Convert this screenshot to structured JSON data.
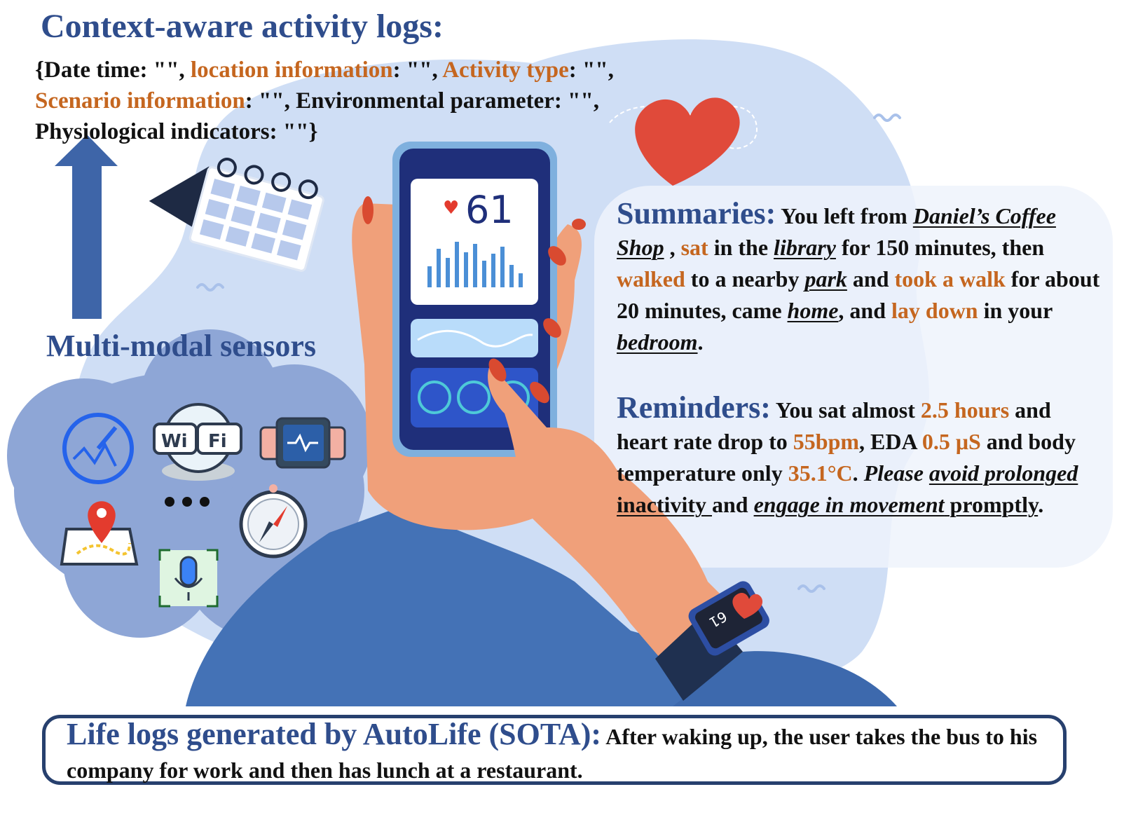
{
  "title": "Context-aware activity logs:",
  "schema": {
    "open": "{",
    "f1": "Date time",
    "v1": ": \"\", ",
    "f2": "location information",
    "v2": ": \"\", ",
    "f3": "Activity type",
    "v3": ": \"\",",
    "f4": "Scenario information",
    "v4": ": \"\", ",
    "f5": "Environmental parameter",
    "v5": ": \"\",",
    "f6": "Physiological indicators",
    "v6": ": \"\"}"
  },
  "sensors_label": "Multi-modal sensors",
  "sensor_icons": [
    "speedometer-icon",
    "wifi-icon",
    "smartwatch-icon",
    "map-pin-icon",
    "more-icon",
    "compass-icon",
    "microphone-icon",
    "calendar-icon",
    "heart-icon"
  ],
  "phone": {
    "heart_rate": "61"
  },
  "watch": {
    "value": "61"
  },
  "colors": {
    "accent_blue": "#2f4d8c",
    "accent_orange": "#c5661f",
    "arrow_blue": "#3e65a8"
  },
  "summaries": {
    "heading": "Summaries:",
    "t1": " You left from ",
    "p1": "Daniel’s Coffee Shop",
    "t2": " , ",
    "a1": "sat",
    "t3": " in the ",
    "p2": "library",
    "t4": " for 150 minutes, then ",
    "a2": "walked",
    "t5": " to a nearby ",
    "p3": "park",
    "t6": " and ",
    "a3": "took a walk",
    "t7": " for about 20 minutes, came ",
    "p4": "home",
    "t8": ", and ",
    "a4": "lay down",
    "t9": " in your ",
    "p5": "bedroom",
    "t10": "."
  },
  "reminders": {
    "heading": "Reminders:",
    "t1": " You sat almost ",
    "v1": "2.5 hours",
    "t2": " and heart rate drop to ",
    "v2": "55bpm",
    "t3": ", EDA ",
    "v3": "0.5 μS",
    "t4": " and body temperature only ",
    "v4": "35.1°C",
    "t5": ". ",
    "i1": "Please",
    "t6": " ",
    "u1": "avoid prolonged",
    "u2": " inactivity ",
    "t7": "and ",
    "u3": "engage in movement",
    "u4": " promptly",
    "t8": "."
  },
  "autolife": {
    "heading": "Life logs generated by AutoLife (SOTA):",
    "text": "  After waking up, the user takes the bus to his company for work and then has lunch at a restaurant."
  }
}
